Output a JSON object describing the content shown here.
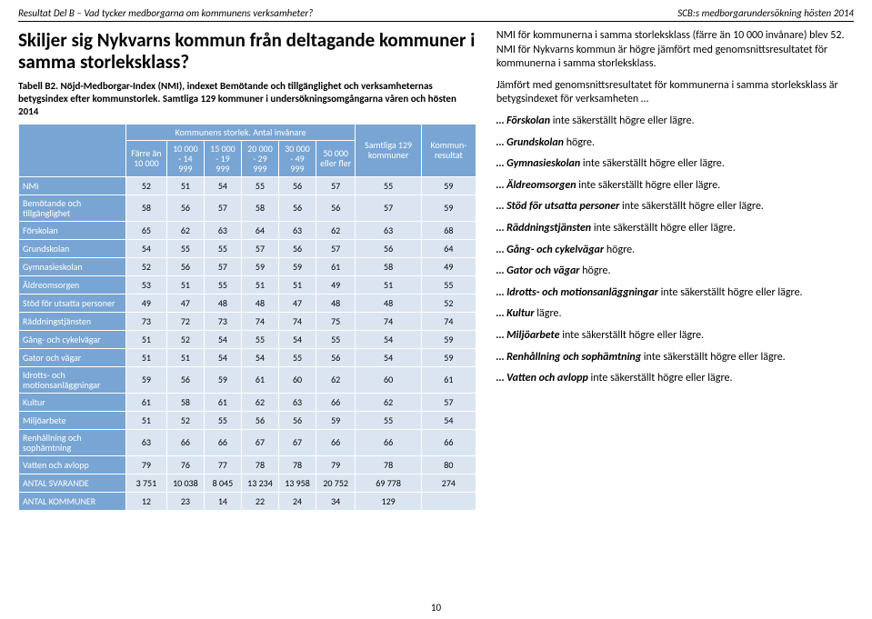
{
  "header": {
    "left": "Resultat Del B – Vad tycker medborgarna om kommunens verksamheter?",
    "right": "SCB:s medborgarundersökning hösten 2014"
  },
  "title": "Skiljer sig Nykvarns kommun från deltagande kommuner i samma storleksklass?",
  "caption": "Tabell B2. Nöjd-Medborgar-Index (NMI), indexet Bemötande och tillgänglighet och verksamheternas betygsindex efter kommunstorlek. Samtliga 129 kommuner i undersökningsomgångarna våren och hösten 2014",
  "table": {
    "superheader": "Kommunens storlek. Antal invånare",
    "col_corner": "",
    "col_samtliga": "Samtliga 129 kommuner",
    "col_kommun": "Kommun-resultat",
    "cols": [
      "Färre än 10 000",
      "10 000 - 14 999",
      "15 000 - 19 999",
      "20 000 - 29 999",
      "30 000 - 49 999",
      "50 000 eller fler"
    ],
    "rows": [
      {
        "label": "NMI",
        "v": [
          "52",
          "51",
          "54",
          "55",
          "56",
          "57",
          "55",
          "59"
        ]
      },
      {
        "label": "Bemötande och tillgänglighet",
        "v": [
          "58",
          "56",
          "57",
          "58",
          "56",
          "56",
          "57",
          "59"
        ]
      },
      {
        "label": "Förskolan",
        "v": [
          "65",
          "62",
          "63",
          "64",
          "63",
          "62",
          "63",
          "68"
        ]
      },
      {
        "label": "Grundskolan",
        "v": [
          "54",
          "55",
          "55",
          "57",
          "56",
          "57",
          "56",
          "64"
        ]
      },
      {
        "label": "Gymnasieskolan",
        "v": [
          "52",
          "56",
          "57",
          "59",
          "59",
          "61",
          "58",
          "49"
        ]
      },
      {
        "label": "Äldreomsorgen",
        "v": [
          "53",
          "51",
          "55",
          "51",
          "51",
          "49",
          "51",
          "55"
        ]
      },
      {
        "label": "Stöd för utsatta personer",
        "v": [
          "49",
          "47",
          "48",
          "48",
          "47",
          "48",
          "48",
          "52"
        ]
      },
      {
        "label": "Räddningstjänsten",
        "v": [
          "73",
          "72",
          "73",
          "74",
          "74",
          "75",
          "74",
          "74"
        ]
      },
      {
        "label": "Gång- och cykelvägar",
        "v": [
          "51",
          "52",
          "54",
          "55",
          "54",
          "55",
          "54",
          "59"
        ]
      },
      {
        "label": "Gator och vägar",
        "v": [
          "51",
          "51",
          "54",
          "54",
          "55",
          "56",
          "54",
          "59"
        ]
      },
      {
        "label": "Idrotts- och motionsanläggningar",
        "v": [
          "59",
          "56",
          "59",
          "61",
          "60",
          "62",
          "60",
          "61"
        ]
      },
      {
        "label": "Kultur",
        "v": [
          "61",
          "58",
          "61",
          "62",
          "63",
          "66",
          "62",
          "57"
        ]
      },
      {
        "label": "Miljöarbete",
        "v": [
          "51",
          "52",
          "55",
          "56",
          "56",
          "59",
          "55",
          "54"
        ]
      },
      {
        "label": "Renhållning och sophämtning",
        "v": [
          "63",
          "66",
          "66",
          "67",
          "67",
          "66",
          "66",
          "66"
        ]
      },
      {
        "label": "Vatten och avlopp",
        "v": [
          "79",
          "76",
          "77",
          "78",
          "78",
          "79",
          "78",
          "80"
        ]
      },
      {
        "label": "ANTAL SVARANDE",
        "v": [
          "3 751",
          "10 038",
          "8 045",
          "13 234",
          "13 958",
          "20 752",
          "69 778",
          "274"
        ]
      },
      {
        "label": "ANTAL KOMMUNER",
        "v": [
          "12",
          "23",
          "14",
          "22",
          "24",
          "34",
          "129",
          ""
        ]
      }
    ]
  },
  "right": {
    "p1": "NMI för kommunerna i samma storleksklass (färre än 10 000 invånare) blev 52. NMI för Nykvarns kommun är högre jämfört med genomsnittsresultatet för kommunerna i samma storleksklass.",
    "p2": "Jämfört med genomsnittsresultatet för kommunerna i samma storleksklass är betygsindexet för verksamheten …",
    "items": [
      {
        "lead": "… Förskolan",
        "rest": " inte säkerställt högre eller lägre."
      },
      {
        "lead": "… Grundskolan",
        "rest": " högre."
      },
      {
        "lead": "… Gymnasieskolan",
        "rest": " inte säkerställt högre eller lägre."
      },
      {
        "lead": "… Äldreomsorgen",
        "rest": " inte säkerställt högre eller lägre."
      },
      {
        "lead": "… Stöd för utsatta personer",
        "rest": " inte säkerställt högre eller lägre."
      },
      {
        "lead": "… Räddningstjänsten",
        "rest": " inte säkerställt högre eller lägre."
      },
      {
        "lead": "… Gång- och cykelvägar",
        "rest": " högre."
      },
      {
        "lead": "… Gator och vägar",
        "rest": " högre."
      },
      {
        "lead": "… Idrotts- och motionsanläggningar",
        "rest": " inte säkerställt högre eller lägre."
      },
      {
        "lead": "… Kultur",
        "rest": " lägre."
      },
      {
        "lead": "… Miljöarbete",
        "rest": " inte säkerställt högre eller lägre."
      },
      {
        "lead": "… Renhållning och sophämtning",
        "rest": " inte säkerställt högre eller lägre."
      },
      {
        "lead": "… Vatten och avlopp",
        "rest": " inte säkerställt högre eller lägre."
      }
    ]
  },
  "page_number": "10"
}
